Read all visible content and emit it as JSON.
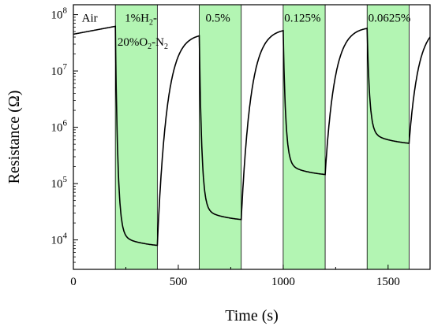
{
  "chart_data": {
    "type": "line",
    "title": "",
    "xlabel": "Time (s)",
    "ylabel": "Resistance (Ω)",
    "xlim": [
      0,
      1700
    ],
    "ylim": [
      3000,
      150000000
    ],
    "yscale": "log",
    "grid": false,
    "x_ticks": [
      {
        "value": 0,
        "label": "0"
      },
      {
        "value": 500,
        "label": "500"
      },
      {
        "value": 1000,
        "label": "1000"
      },
      {
        "value": 1500,
        "label": "1500"
      }
    ],
    "y_ticks": [
      {
        "value": 10000,
        "base": "10",
        "exp": "4"
      },
      {
        "value": 100000,
        "base": "10",
        "exp": "5"
      },
      {
        "value": 1000000,
        "base": "10",
        "exp": "6"
      },
      {
        "value": 10000000,
        "base": "10",
        "exp": "7"
      },
      {
        "value": 100000000,
        "base": "10",
        "exp": "8"
      }
    ],
    "shaded_regions": [
      {
        "x0": 200,
        "x1": 400,
        "color": "#b3f5b3"
      },
      {
        "x0": 600,
        "x1": 800,
        "color": "#b3f5b3"
      },
      {
        "x0": 1000,
        "x1": 1200,
        "color": "#b3f5b3"
      },
      {
        "x0": 1400,
        "x1": 1600,
        "color": "#b3f5b3"
      }
    ],
    "annotations": [
      {
        "id": "air",
        "parts": [
          {
            "text": "Air"
          }
        ],
        "x": 40,
        "y": 75000000
      },
      {
        "id": "h2-1pct",
        "parts": [
          {
            "text": "1%H"
          },
          {
            "text": "2",
            "sub": true
          },
          {
            "text": "-"
          }
        ],
        "x": 245,
        "y": 75000000
      },
      {
        "id": "o2-n2",
        "parts": [
          {
            "text": "20%O"
          },
          {
            "text": "2",
            "sub": true
          },
          {
            "text": "-N"
          },
          {
            "text": "2",
            "sub": true
          }
        ],
        "x": 210,
        "y": 28000000
      },
      {
        "id": "c-0.5",
        "parts": [
          {
            "text": "0.5%"
          }
        ],
        "x": 630,
        "y": 75000000
      },
      {
        "id": "c-0.125",
        "parts": [
          {
            "text": "0.125%"
          }
        ],
        "x": 1005,
        "y": 75000000
      },
      {
        "id": "c-0.0625",
        "parts": [
          {
            "text": "0.0625%"
          }
        ],
        "x": 1405,
        "y": 75000000
      }
    ],
    "series": [
      {
        "color": "#000000",
        "cycles": [
          {
            "x_start": 0,
            "r_start": 45000000,
            "x_on": 200,
            "r_high": 62000000,
            "x_off": 400,
            "r_low": 8000
          },
          {
            "x_on": 600,
            "r_high": 42000000,
            "x_off": 800,
            "r_low": 23000
          },
          {
            "x_on": 1000,
            "r_high": 52000000,
            "x_off": 1200,
            "r_low": 145000
          },
          {
            "x_on": 1400,
            "r_high": 57000000,
            "x_off": 1600,
            "r_low": 520000
          }
        ],
        "x_end": 1700,
        "r_end": 32000000
      }
    ]
  }
}
